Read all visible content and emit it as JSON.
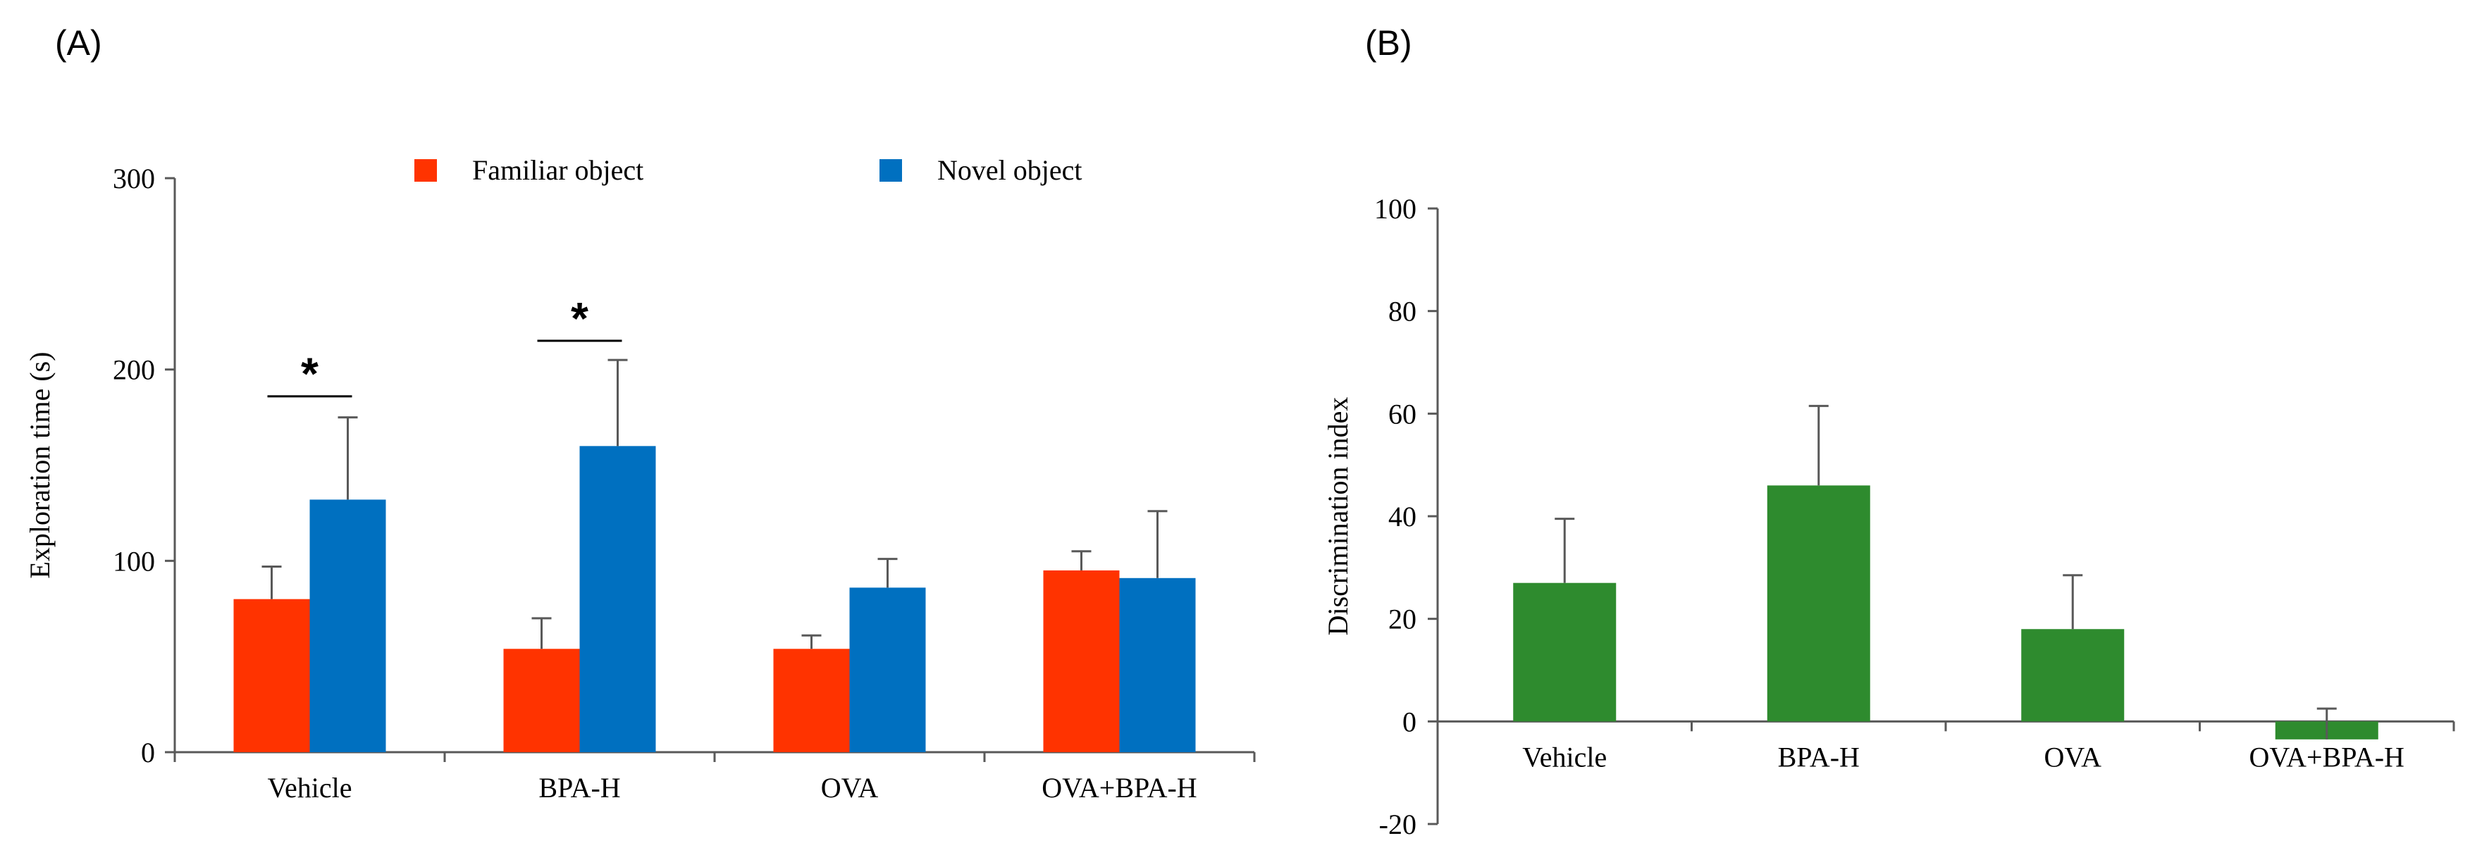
{
  "panels": {
    "a_label": "(A)",
    "b_label": "(B)"
  },
  "colors": {
    "familiar": "#ff3300",
    "novel": "#0070c0",
    "discrimination": "#2e8b2e",
    "axis": "#595959",
    "text": "#000000"
  },
  "chart_data": [
    {
      "panel": "(A)",
      "type": "bar",
      "title": "",
      "xlabel": "",
      "ylabel": "Exploration time (s)",
      "ylim": [
        0,
        300
      ],
      "yticks": [
        0,
        100,
        200,
        300
      ],
      "legend_position": "top",
      "categories": [
        "Vehicle",
        "BPA-H",
        "OVA",
        "OVA+BPA-H"
      ],
      "series": [
        {
          "name": "Familiar object",
          "color_key": "familiar",
          "values": [
            80,
            54,
            54,
            95
          ],
          "errors": [
            17,
            16,
            7,
            10
          ]
        },
        {
          "name": "Novel object",
          "color_key": "novel",
          "values": [
            132,
            160,
            86,
            91
          ],
          "errors": [
            43,
            45,
            15,
            35
          ]
        }
      ],
      "annotations": [
        {
          "category_index": 0,
          "text": "*",
          "level": 186
        },
        {
          "category_index": 1,
          "text": "*",
          "level": 215
        }
      ]
    },
    {
      "panel": "(B)",
      "type": "bar",
      "title": "",
      "xlabel": "",
      "ylabel": "Discrimination index",
      "ylim": [
        -20,
        100
      ],
      "yticks": [
        -20,
        0,
        20,
        40,
        60,
        80,
        100
      ],
      "categories": [
        "Vehicle",
        "BPA-H",
        "OVA",
        "OVA+BPA-H"
      ],
      "series": [
        {
          "name": "Discrimination index",
          "color_key": "discrimination",
          "values": [
            27,
            46,
            18,
            -3.5
          ],
          "errors": [
            12.5,
            15.5,
            10.5,
            6
          ]
        }
      ]
    }
  ]
}
